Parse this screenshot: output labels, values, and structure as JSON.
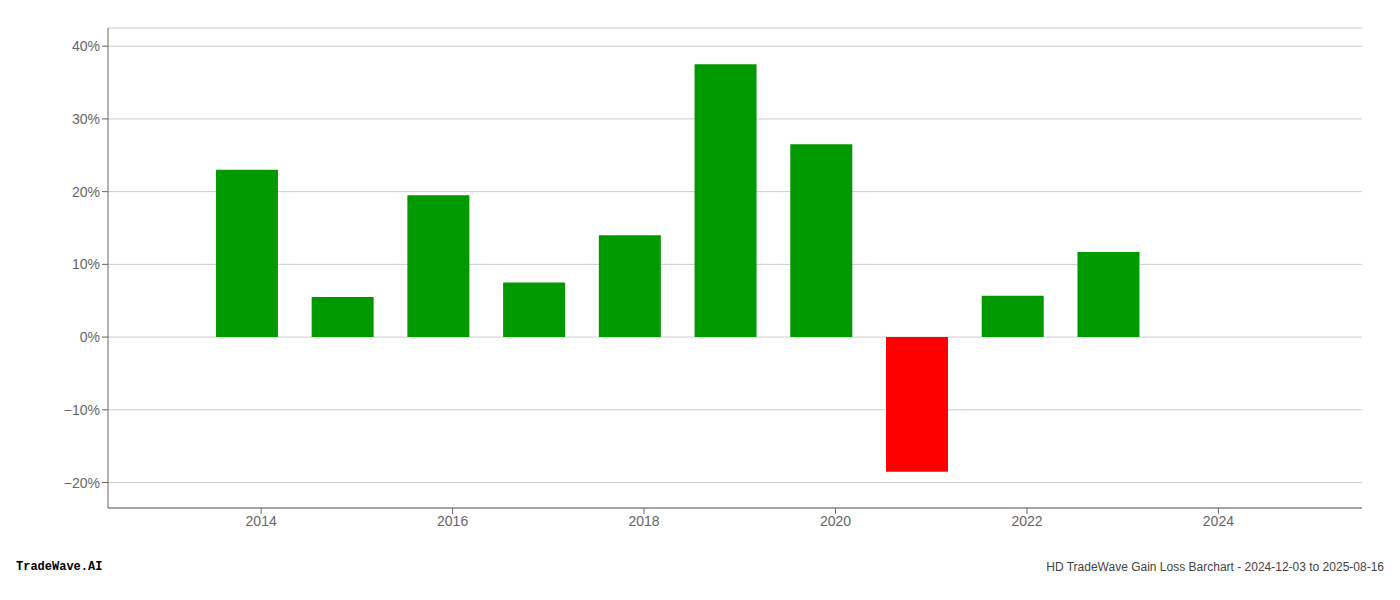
{
  "chart_data": {
    "type": "bar",
    "x": [
      2013.85,
      2014.85,
      2015.85,
      2016.85,
      2017.85,
      2018.85,
      2019.85,
      2020.85,
      2021.85,
      2022.85
    ],
    "values": [
      0.23,
      0.055,
      0.195,
      0.075,
      0.14,
      0.375,
      0.265,
      -0.185,
      0.057,
      0.117
    ],
    "colors": [
      "#009900",
      "#009900",
      "#009900",
      "#009900",
      "#009900",
      "#009900",
      "#009900",
      "#ff0000",
      "#009900",
      "#009900"
    ],
    "xlim": [
      2012.4,
      2025.5
    ],
    "xticks": [
      2014,
      2016,
      2018,
      2020,
      2022,
      2024
    ],
    "ylim": [
      -0.235,
      0.425
    ],
    "yticks": [
      {
        "value": -0.2,
        "label": "−20%"
      },
      {
        "value": -0.1,
        "label": "−10%"
      },
      {
        "value": 0,
        "label": "0%"
      },
      {
        "value": 0.1,
        "label": "10%"
      },
      {
        "value": 0.2,
        "label": "20%"
      },
      {
        "value": 0.3,
        "label": "30%"
      },
      {
        "value": 0.4,
        "label": "40%"
      }
    ],
    "grid": true,
    "annotations": [
      "TradeWave.AI",
      "HD TradeWave Gain Loss Barchart - 2024-12-03 to 2025-08-16"
    ]
  }
}
